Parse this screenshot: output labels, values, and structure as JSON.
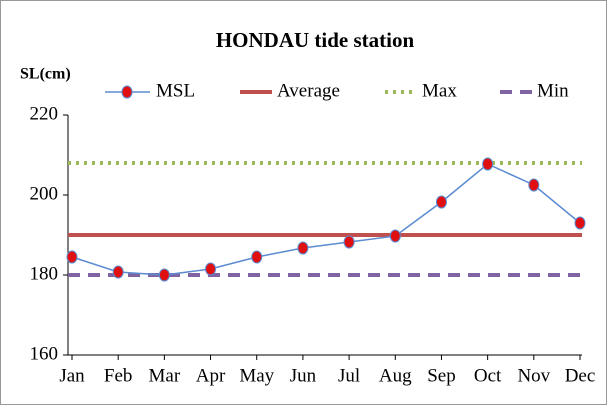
{
  "chart_data": {
    "type": "line",
    "title": "HONDAU tide station",
    "y_label": "SL(cm)",
    "categories": [
      "Jan",
      "Feb",
      "Mar",
      "Apr",
      "May",
      "Jun",
      "Jul",
      "Aug",
      "Sep",
      "Oct",
      "Nov",
      "Dec"
    ],
    "series": [
      {
        "name": "MSL",
        "color": "#5b8bd0",
        "marker_color": "#e01010",
        "values": [
          184.5,
          180.75,
          180,
          181.5,
          184.5,
          186.75,
          188.25,
          189.75,
          198.25,
          207.75,
          202.5,
          193
        ]
      }
    ],
    "reference_lines": [
      {
        "name": "Average",
        "color": "#c0504d",
        "style": "solid",
        "value": 190
      },
      {
        "name": "Max",
        "color": "#9bbb59",
        "style": "dotted",
        "value": 208
      },
      {
        "name": "Min",
        "color": "#8064a2",
        "style": "dashed",
        "value": 180
      }
    ],
    "ylim": [
      160,
      220
    ],
    "yticks": [
      160,
      180,
      200,
      220
    ]
  }
}
